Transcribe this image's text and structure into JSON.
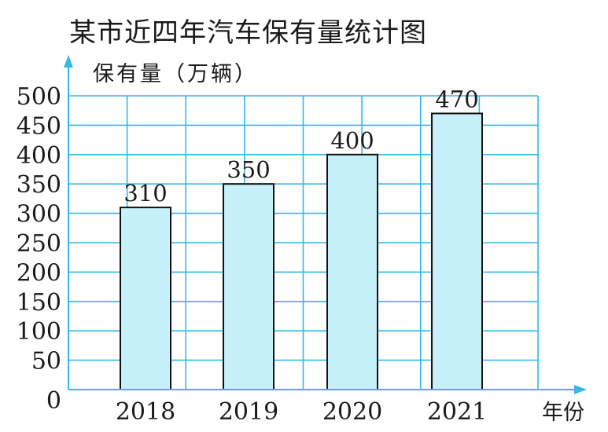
{
  "chart_data": {
    "type": "bar",
    "title": "某市近四年汽车保有量统计图",
    "ylabel": "保有量（万辆）",
    "xlabel": "年份",
    "categories": [
      "2018",
      "2019",
      "2020",
      "2021"
    ],
    "values": [
      310,
      350,
      400,
      470
    ],
    "data_labels": [
      "310",
      "350",
      "400",
      "470"
    ],
    "ylim": [
      0,
      500
    ],
    "yticks": [
      "0",
      "50",
      "100",
      "150",
      "200",
      "250",
      "300",
      "350",
      "400",
      "450",
      "500"
    ],
    "grid": true,
    "colors": {
      "bar_fill": "#c6f0fa",
      "bar_stroke": "#111111",
      "grid": "#35b8e6",
      "axis": "#35b8e6",
      "text": "#1a1a1a"
    }
  }
}
